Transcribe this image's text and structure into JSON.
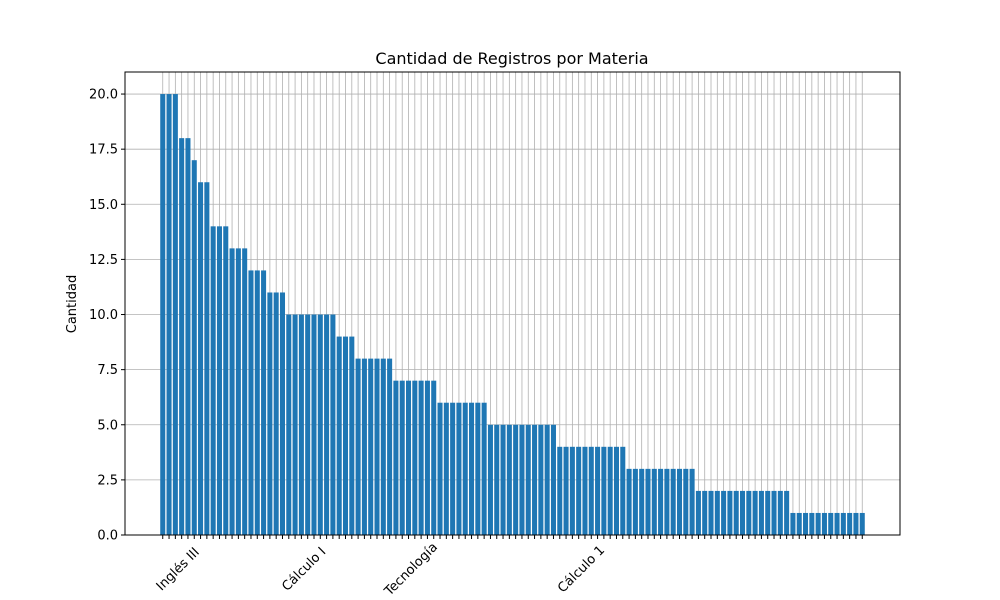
{
  "chart_data": {
    "type": "bar",
    "title": "Cantidad de Registros por Materia",
    "y_label": "Cantidad",
    "categories": [
      "Inglés III",
      null,
      null,
      null,
      null,
      null,
      null,
      null,
      null,
      null,
      null,
      null,
      null,
      null,
      null,
      null,
      null,
      null,
      null,
      null,
      "Cálculo I",
      null,
      null,
      null,
      null,
      null,
      null,
      null,
      null,
      null,
      null,
      null,
      null,
      null,
      null,
      null,
      null,
      "Tecnología",
      null,
      null,
      null,
      null,
      null,
      null,
      null,
      null,
      null,
      null,
      null,
      null,
      null,
      null,
      null,
      null,
      null,
      null,
      null,
      null,
      null,
      null,
      null,
      null,
      null,
      null,
      "Cálculo 1",
      null,
      null,
      null,
      null,
      null,
      null,
      null,
      null,
      null,
      null,
      null,
      null,
      null,
      null,
      null,
      null,
      null,
      null,
      null,
      null,
      null,
      null,
      null,
      null,
      null,
      null,
      null,
      null,
      null,
      null,
      null,
      null,
      null,
      null,
      null,
      null,
      null,
      null,
      null,
      null,
      null,
      null,
      null,
      null,
      null,
      null,
      null
    ],
    "values": [
      20,
      20,
      20,
      18,
      18,
      17,
      16,
      16,
      14,
      14,
      14,
      13,
      13,
      13,
      12,
      12,
      12,
      11,
      11,
      11,
      10,
      10,
      10,
      10,
      10,
      10,
      10,
      10,
      9,
      9,
      9,
      8,
      8,
      8,
      8,
      8,
      8,
      7,
      7,
      7,
      7,
      7,
      7,
      7,
      6,
      6,
      6,
      6,
      6,
      6,
      6,
      6,
      5,
      5,
      5,
      5,
      5,
      5,
      5,
      5,
      5,
      5,
      5,
      4,
      4,
      4,
      4,
      4,
      4,
      4,
      4,
      4,
      4,
      4,
      3,
      3,
      3,
      3,
      3,
      3,
      3,
      3,
      3,
      3,
      3,
      2,
      2,
      2,
      2,
      2,
      2,
      2,
      2,
      2,
      2,
      2,
      2,
      2,
      2,
      2,
      1,
      1,
      1,
      1,
      1,
      1,
      1,
      1,
      1,
      1,
      1,
      1
    ],
    "color": "#1f77b4",
    "ylim": [
      0,
      21
    ],
    "yticks": [
      {
        "value": 0,
        "label": "0.0"
      },
      {
        "value": 2.5,
        "label": "2.5"
      },
      {
        "value": 5,
        "label": "5.0"
      },
      {
        "value": 7.5,
        "label": "7.5"
      },
      {
        "value": 10,
        "label": "10.0"
      },
      {
        "value": 12.5,
        "label": "12.5"
      },
      {
        "value": 15,
        "label": "15.0"
      },
      {
        "value": 17.5,
        "label": "17.5"
      },
      {
        "value": 20,
        "label": "20.0"
      }
    ],
    "grid": true
  }
}
